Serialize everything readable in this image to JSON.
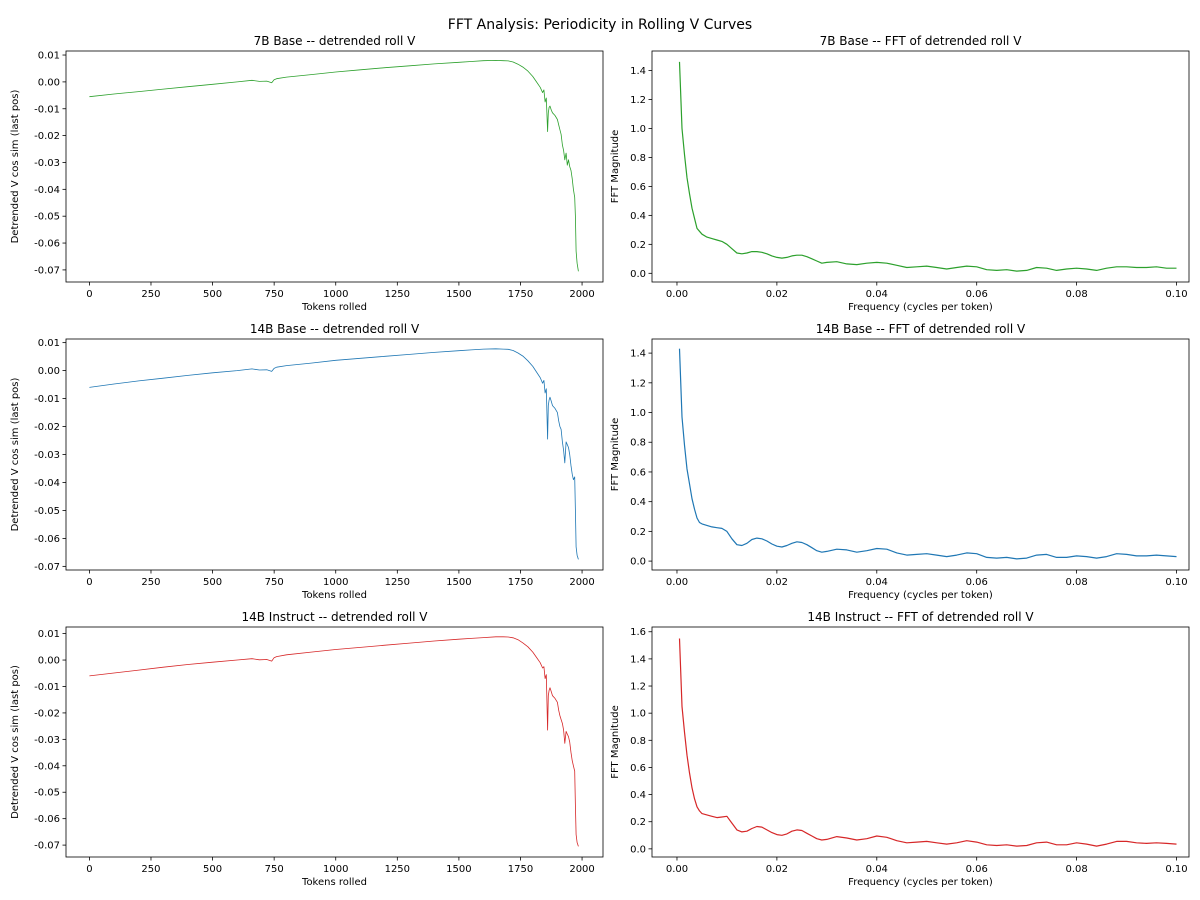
{
  "figure": {
    "title": "FFT Analysis: Periodicity in Rolling V Curves"
  },
  "chart_data": [
    {
      "id": "p0",
      "type": "line",
      "title": "7B Base -- detrended roll V",
      "xlabel": "Tokens rolled",
      "ylabel": "Detrended V cos sim (last pos)",
      "xlim": [
        -95,
        2085
      ],
      "ylim": [
        -0.0745,
        0.0115
      ],
      "xticks": [
        0,
        250,
        500,
        750,
        1000,
        1250,
        1500,
        1750,
        2000
      ],
      "yticks": [
        0.01,
        0.0,
        -0.01,
        -0.02,
        -0.03,
        -0.04,
        -0.05,
        -0.06,
        -0.07
      ],
      "color": "#2ca02c",
      "series": [
        {
          "name": "7B Base",
          "x": [
            0,
            100,
            200,
            300,
            400,
            500,
            600,
            660,
            690,
            720,
            740,
            750,
            760,
            800,
            900,
            1000,
            1100,
            1200,
            1300,
            1400,
            1500,
            1550,
            1600,
            1650,
            1680,
            1700,
            1720,
            1740,
            1760,
            1780,
            1800,
            1815,
            1830,
            1840,
            1845,
            1850,
            1855,
            1860,
            1863,
            1866,
            1870,
            1875,
            1880,
            1890,
            1900,
            1905,
            1910,
            1915,
            1920,
            1925,
            1930,
            1935,
            1940,
            1945,
            1950,
            1955,
            1960,
            1965,
            1970,
            1973,
            1976,
            1980,
            1985
          ],
          "y": [
            -0.0055,
            -0.0045,
            -0.0036,
            -0.0027,
            -0.0018,
            -0.0009,
            0.0,
            0.0006,
            0.0002,
            0.0003,
            -0.0003,
            0.0008,
            0.0012,
            0.0018,
            0.0027,
            0.0037,
            0.0045,
            0.0053,
            0.006,
            0.0067,
            0.0073,
            0.0076,
            0.0079,
            0.008,
            0.0079,
            0.0078,
            0.0074,
            0.0066,
            0.0055,
            0.004,
            0.002,
            0.0,
            -0.002,
            -0.004,
            -0.003,
            -0.0075,
            -0.006,
            -0.0185,
            -0.0115,
            -0.0095,
            -0.009,
            -0.0105,
            -0.0115,
            -0.0125,
            -0.014,
            -0.016,
            -0.0178,
            -0.0195,
            -0.0235,
            -0.0255,
            -0.029,
            -0.0265,
            -0.031,
            -0.029,
            -0.0315,
            -0.033,
            -0.036,
            -0.04,
            -0.043,
            -0.05,
            -0.063,
            -0.0675,
            -0.0705
          ]
        }
      ]
    },
    {
      "id": "p1",
      "type": "line",
      "title": "7B Base -- FFT of detrended roll V",
      "xlabel": "Frequency (cycles per token)",
      "ylabel": "FFT Magnitude",
      "xlim": [
        -0.005,
        0.1025
      ],
      "ylim": [
        -0.06,
        1.535
      ],
      "xticks": [
        0.0,
        0.02,
        0.04,
        0.06,
        0.08,
        0.1
      ],
      "yticks": [
        0.0,
        0.2,
        0.4,
        0.6,
        0.8,
        1.0,
        1.2,
        1.4
      ],
      "color": "#2ca02c",
      "series": [
        {
          "name": "7B Base FFT",
          "x": [
            0.0005,
            0.001,
            0.0015,
            0.002,
            0.0025,
            0.003,
            0.0035,
            0.004,
            0.0045,
            0.005,
            0.006,
            0.007,
            0.008,
            0.009,
            0.01,
            0.011,
            0.012,
            0.013,
            0.014,
            0.015,
            0.016,
            0.017,
            0.018,
            0.019,
            0.02,
            0.021,
            0.022,
            0.023,
            0.024,
            0.025,
            0.026,
            0.027,
            0.028,
            0.029,
            0.03,
            0.032,
            0.034,
            0.036,
            0.038,
            0.04,
            0.042,
            0.044,
            0.046,
            0.048,
            0.05,
            0.052,
            0.054,
            0.056,
            0.058,
            0.06,
            0.062,
            0.064,
            0.066,
            0.068,
            0.07,
            0.072,
            0.074,
            0.076,
            0.078,
            0.08,
            0.082,
            0.084,
            0.086,
            0.088,
            0.09,
            0.092,
            0.094,
            0.096,
            0.098,
            0.1
          ],
          "y": [
            1.46,
            1.0,
            0.82,
            0.66,
            0.55,
            0.45,
            0.38,
            0.31,
            0.29,
            0.27,
            0.25,
            0.24,
            0.23,
            0.22,
            0.2,
            0.17,
            0.14,
            0.135,
            0.14,
            0.15,
            0.15,
            0.145,
            0.135,
            0.12,
            0.11,
            0.105,
            0.11,
            0.12,
            0.125,
            0.125,
            0.115,
            0.1,
            0.085,
            0.07,
            0.075,
            0.08,
            0.065,
            0.06,
            0.07,
            0.075,
            0.07,
            0.055,
            0.04,
            0.045,
            0.05,
            0.04,
            0.03,
            0.04,
            0.05,
            0.045,
            0.025,
            0.02,
            0.025,
            0.015,
            0.02,
            0.04,
            0.035,
            0.02,
            0.03,
            0.035,
            0.03,
            0.02,
            0.035,
            0.045,
            0.045,
            0.04,
            0.04,
            0.045,
            0.035,
            0.035
          ]
        }
      ]
    },
    {
      "id": "p2",
      "type": "line",
      "title": "14B Base -- detrended roll V",
      "xlabel": "Tokens rolled",
      "ylabel": "Detrended V cos sim (last pos)",
      "xlim": [
        -95,
        2085
      ],
      "ylim": [
        -0.0713,
        0.0113
      ],
      "xticks": [
        0,
        250,
        500,
        750,
        1000,
        1250,
        1500,
        1750,
        2000
      ],
      "yticks": [
        0.01,
        0.0,
        -0.01,
        -0.02,
        -0.03,
        -0.04,
        -0.05,
        -0.06,
        -0.07
      ],
      "color": "#1f77b4",
      "series": [
        {
          "name": "14B Base",
          "x": [
            0,
            100,
            200,
            300,
            400,
            500,
            600,
            660,
            690,
            720,
            740,
            750,
            760,
            800,
            900,
            1000,
            1100,
            1200,
            1300,
            1400,
            1500,
            1550,
            1600,
            1650,
            1680,
            1700,
            1720,
            1740,
            1760,
            1780,
            1800,
            1815,
            1830,
            1840,
            1845,
            1850,
            1855,
            1860,
            1863,
            1866,
            1870,
            1875,
            1880,
            1890,
            1900,
            1905,
            1910,
            1915,
            1920,
            1925,
            1930,
            1935,
            1940,
            1945,
            1950,
            1955,
            1960,
            1965,
            1970,
            1973,
            1976,
            1980,
            1985
          ],
          "y": [
            -0.006,
            -0.0048,
            -0.0037,
            -0.0027,
            -0.0017,
            -0.0008,
            0.0,
            0.0006,
            0.0002,
            0.0003,
            -0.0003,
            0.0008,
            0.0012,
            0.0018,
            0.0027,
            0.0037,
            0.0044,
            0.0051,
            0.0058,
            0.0065,
            0.0071,
            0.0074,
            0.0077,
            0.0078,
            0.0077,
            0.0076,
            0.0072,
            0.0063,
            0.0052,
            0.0035,
            0.0015,
            -0.0005,
            -0.0025,
            -0.0045,
            -0.0035,
            -0.008,
            -0.0065,
            -0.0245,
            -0.0125,
            -0.0105,
            -0.0095,
            -0.011,
            -0.0125,
            -0.0135,
            -0.015,
            -0.018,
            -0.02,
            -0.021,
            -0.0255,
            -0.0285,
            -0.033,
            -0.0255,
            -0.0265,
            -0.0275,
            -0.03,
            -0.034,
            -0.037,
            -0.039,
            -0.038,
            -0.05,
            -0.063,
            -0.066,
            -0.0675
          ]
        }
      ]
    },
    {
      "id": "p3",
      "type": "line",
      "title": "14B Base -- FFT of detrended roll V",
      "xlabel": "Frequency (cycles per token)",
      "ylabel": "FFT Magnitude",
      "xlim": [
        -0.005,
        0.1025
      ],
      "ylim": [
        -0.06,
        1.495
      ],
      "xticks": [
        0.0,
        0.02,
        0.04,
        0.06,
        0.08,
        0.1
      ],
      "yticks": [
        0.0,
        0.2,
        0.4,
        0.6,
        0.8,
        1.0,
        1.2,
        1.4
      ],
      "color": "#1f77b4",
      "series": [
        {
          "name": "14B Base FFT",
          "x": [
            0.0005,
            0.001,
            0.0015,
            0.002,
            0.0025,
            0.003,
            0.0035,
            0.004,
            0.0045,
            0.005,
            0.006,
            0.007,
            0.008,
            0.009,
            0.01,
            0.011,
            0.012,
            0.013,
            0.014,
            0.015,
            0.016,
            0.017,
            0.018,
            0.019,
            0.02,
            0.021,
            0.022,
            0.023,
            0.024,
            0.025,
            0.026,
            0.027,
            0.028,
            0.029,
            0.03,
            0.032,
            0.034,
            0.036,
            0.038,
            0.04,
            0.042,
            0.044,
            0.046,
            0.048,
            0.05,
            0.052,
            0.054,
            0.056,
            0.058,
            0.06,
            0.062,
            0.064,
            0.066,
            0.068,
            0.07,
            0.072,
            0.074,
            0.076,
            0.078,
            0.08,
            0.082,
            0.084,
            0.086,
            0.088,
            0.09,
            0.092,
            0.094,
            0.096,
            0.098,
            0.1
          ],
          "y": [
            1.43,
            0.97,
            0.78,
            0.62,
            0.52,
            0.42,
            0.35,
            0.29,
            0.26,
            0.25,
            0.24,
            0.23,
            0.225,
            0.22,
            0.2,
            0.15,
            0.11,
            0.105,
            0.12,
            0.145,
            0.155,
            0.15,
            0.135,
            0.115,
            0.1,
            0.095,
            0.105,
            0.12,
            0.13,
            0.125,
            0.11,
            0.09,
            0.07,
            0.06,
            0.065,
            0.08,
            0.075,
            0.06,
            0.07,
            0.085,
            0.08,
            0.055,
            0.04,
            0.045,
            0.05,
            0.04,
            0.03,
            0.04,
            0.055,
            0.05,
            0.025,
            0.02,
            0.025,
            0.015,
            0.02,
            0.04,
            0.045,
            0.025,
            0.025,
            0.035,
            0.03,
            0.02,
            0.03,
            0.05,
            0.045,
            0.035,
            0.035,
            0.04,
            0.035,
            0.03
          ]
        }
      ]
    },
    {
      "id": "p4",
      "type": "line",
      "title": "14B Instruct -- detrended roll V",
      "xlabel": "Tokens rolled",
      "ylabel": "Detrended V cos sim (last pos)",
      "xlim": [
        -95,
        2085
      ],
      "ylim": [
        -0.0745,
        0.0125
      ],
      "xticks": [
        0,
        250,
        500,
        750,
        1000,
        1250,
        1500,
        1750,
        2000
      ],
      "yticks": [
        0.01,
        0.0,
        -0.01,
        -0.02,
        -0.03,
        -0.04,
        -0.05,
        -0.06,
        -0.07
      ],
      "color": "#d62728",
      "series": [
        {
          "name": "14B Instruct",
          "x": [
            0,
            100,
            200,
            300,
            400,
            500,
            600,
            660,
            690,
            720,
            740,
            750,
            760,
            800,
            900,
            1000,
            1100,
            1200,
            1300,
            1400,
            1500,
            1550,
            1600,
            1650,
            1680,
            1700,
            1720,
            1740,
            1760,
            1780,
            1800,
            1815,
            1830,
            1840,
            1845,
            1850,
            1855,
            1860,
            1863,
            1866,
            1870,
            1875,
            1880,
            1890,
            1900,
            1905,
            1910,
            1915,
            1920,
            1925,
            1930,
            1935,
            1940,
            1945,
            1950,
            1955,
            1960,
            1965,
            1970,
            1973,
            1976,
            1980,
            1985
          ],
          "y": [
            -0.006,
            -0.0049,
            -0.0038,
            -0.0027,
            -0.0017,
            -0.0008,
            0.0,
            0.0005,
            0.0001,
            0.0002,
            -0.0004,
            0.0009,
            0.0013,
            0.002,
            0.003,
            0.004,
            0.0048,
            0.0056,
            0.0064,
            0.0072,
            0.0079,
            0.0082,
            0.0085,
            0.0088,
            0.0088,
            0.0087,
            0.0084,
            0.0077,
            0.0065,
            0.005,
            0.003,
            0.001,
            -0.001,
            -0.003,
            -0.0025,
            -0.007,
            -0.0055,
            -0.0265,
            -0.0135,
            -0.0115,
            -0.0105,
            -0.012,
            -0.0135,
            -0.0145,
            -0.016,
            -0.019,
            -0.021,
            -0.0225,
            -0.024,
            -0.0265,
            -0.0315,
            -0.027,
            -0.028,
            -0.029,
            -0.031,
            -0.035,
            -0.038,
            -0.04,
            -0.042,
            -0.055,
            -0.066,
            -0.069,
            -0.0705
          ]
        }
      ]
    },
    {
      "id": "p5",
      "type": "line",
      "title": "14B Instruct -- FFT of detrended roll V",
      "xlabel": "Frequency (cycles per token)",
      "ylabel": "FFT Magnitude",
      "xlim": [
        -0.005,
        0.1025
      ],
      "ylim": [
        -0.06,
        1.635
      ],
      "xticks": [
        0.0,
        0.02,
        0.04,
        0.06,
        0.08,
        0.1
      ],
      "yticks": [
        0.0,
        0.2,
        0.4,
        0.6,
        0.8,
        1.0,
        1.2,
        1.4,
        1.6
      ],
      "color": "#d62728",
      "series": [
        {
          "name": "14B Instruct FFT",
          "x": [
            0.0005,
            0.001,
            0.0015,
            0.002,
            0.0025,
            0.003,
            0.0035,
            0.004,
            0.0045,
            0.005,
            0.006,
            0.007,
            0.008,
            0.009,
            0.01,
            0.011,
            0.012,
            0.013,
            0.014,
            0.015,
            0.016,
            0.017,
            0.018,
            0.019,
            0.02,
            0.021,
            0.022,
            0.023,
            0.024,
            0.025,
            0.026,
            0.027,
            0.028,
            0.029,
            0.03,
            0.032,
            0.034,
            0.036,
            0.038,
            0.04,
            0.042,
            0.044,
            0.046,
            0.048,
            0.05,
            0.052,
            0.054,
            0.056,
            0.058,
            0.06,
            0.062,
            0.064,
            0.066,
            0.068,
            0.07,
            0.072,
            0.074,
            0.076,
            0.078,
            0.08,
            0.082,
            0.084,
            0.086,
            0.088,
            0.09,
            0.092,
            0.094,
            0.096,
            0.098,
            0.1
          ],
          "y": [
            1.55,
            1.05,
            0.86,
            0.69,
            0.56,
            0.45,
            0.37,
            0.31,
            0.28,
            0.26,
            0.25,
            0.24,
            0.23,
            0.235,
            0.24,
            0.19,
            0.14,
            0.125,
            0.13,
            0.15,
            0.165,
            0.16,
            0.14,
            0.12,
            0.105,
            0.1,
            0.11,
            0.13,
            0.14,
            0.135,
            0.115,
            0.095,
            0.075,
            0.065,
            0.07,
            0.09,
            0.08,
            0.065,
            0.075,
            0.095,
            0.085,
            0.06,
            0.045,
            0.05,
            0.055,
            0.045,
            0.035,
            0.045,
            0.06,
            0.05,
            0.03,
            0.025,
            0.03,
            0.02,
            0.025,
            0.045,
            0.05,
            0.03,
            0.03,
            0.045,
            0.035,
            0.02,
            0.035,
            0.055,
            0.055,
            0.045,
            0.04,
            0.045,
            0.04,
            0.035
          ]
        }
      ]
    }
  ]
}
